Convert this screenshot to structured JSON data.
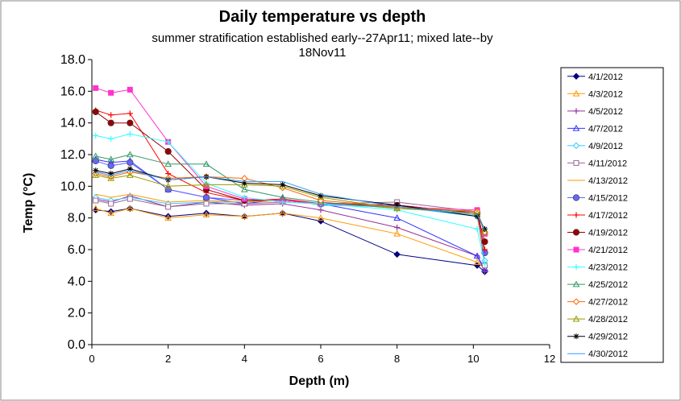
{
  "chart_data": {
    "type": "line",
    "title": "Daily temperature vs depth",
    "subtitle_line1": "summer stratification established early--27Apr11; mixed late--by",
    "subtitle_line2": "18Nov11",
    "xlabel": "Depth (m)",
    "ylabel": "Temp (°C)",
    "xlim": [
      0,
      12
    ],
    "ylim": [
      0,
      18
    ],
    "x_ticks": [
      "0",
      "2",
      "4",
      "6",
      "8",
      "10",
      "12"
    ],
    "y_ticks": [
      "0.0",
      "2.0",
      "4.0",
      "6.0",
      "8.0",
      "10.0",
      "12.0",
      "14.0",
      "16.0",
      "18.0"
    ],
    "grid": false,
    "legend_position": "right",
    "series": [
      {
        "name": "4/1/2012",
        "color": "#000080",
        "marker": "diamond",
        "x": [
          0.1,
          0.5,
          1,
          2,
          3,
          4,
          5,
          6,
          8,
          10.1,
          10.3
        ],
        "y": [
          8.5,
          8.4,
          8.6,
          8.1,
          8.3,
          8.1,
          8.3,
          7.8,
          5.7,
          5.0,
          4.6
        ]
      },
      {
        "name": "4/3/2012",
        "color": "#FF9900",
        "marker": "triangle-open",
        "x": [
          0.1,
          0.5,
          1,
          2,
          3,
          4,
          5,
          6,
          8,
          10.1,
          10.3
        ],
        "y": [
          8.6,
          8.3,
          8.6,
          8.0,
          8.2,
          8.1,
          8.3,
          8.0,
          7.0,
          5.2,
          4.8
        ]
      },
      {
        "name": "4/5/2012",
        "color": "#993399",
        "marker": "plus",
        "x": [
          0.1,
          0.5,
          1,
          2,
          3,
          4,
          5,
          6,
          8,
          10.1,
          10.3
        ],
        "y": [
          9.2,
          9.0,
          9.4,
          8.7,
          9.0,
          8.8,
          8.9,
          8.5,
          7.4,
          5.6,
          4.6
        ]
      },
      {
        "name": "4/7/2012",
        "color": "#3333FF",
        "marker": "triangle-open",
        "x": [
          0.1,
          0.5,
          1,
          2,
          3,
          4,
          5,
          6,
          8,
          10.1,
          10.3
        ],
        "y": [
          11.7,
          11.5,
          11.6,
          9.8,
          9.3,
          8.9,
          9.2,
          8.9,
          8.0,
          5.6,
          4.8
        ]
      },
      {
        "name": "4/9/2012",
        "color": "#33CCFF",
        "marker": "diamond-open",
        "x": [
          0.1,
          0.5,
          1,
          2,
          3,
          4,
          5,
          6,
          8,
          10.1,
          10.3
        ],
        "y": [
          9.3,
          9.1,
          9.3,
          8.9,
          9.0,
          9.0,
          9.2,
          8.8,
          8.7,
          8.1,
          5.3
        ]
      },
      {
        "name": "4/11/2012",
        "color": "#996699",
        "marker": "square-open",
        "x": [
          0.1,
          0.5,
          1,
          2,
          3,
          4,
          5,
          6,
          8,
          10.1,
          10.3
        ],
        "y": [
          9.1,
          8.9,
          9.2,
          8.7,
          8.9,
          8.9,
          9.0,
          8.9,
          9.0,
          8.4,
          5.0
        ]
      },
      {
        "name": "4/13/2012",
        "color": "#FF9900",
        "marker": "none",
        "x": [
          0.1,
          0.5,
          1,
          2,
          3,
          4,
          5,
          6,
          8,
          10.1,
          10.3
        ],
        "y": [
          9.5,
          9.3,
          9.5,
          9.0,
          9.1,
          9.0,
          9.1,
          8.9,
          8.7,
          8.2,
          5.6
        ]
      },
      {
        "name": "4/15/2012",
        "color": "#6666FF",
        "marker": "circle",
        "x": [
          0.1,
          0.5,
          1,
          2,
          3,
          4,
          5,
          6,
          8,
          10.1,
          10.3
        ],
        "y": [
          11.6,
          11.3,
          11.5,
          9.8,
          9.3,
          9.1,
          9.1,
          8.9,
          8.8,
          8.3,
          5.8
        ]
      },
      {
        "name": "4/17/2012",
        "color": "#FF0000",
        "marker": "plus",
        "x": [
          0.1,
          0.5,
          1,
          2,
          3,
          4,
          5,
          6,
          8,
          10.1,
          10.3
        ],
        "y": [
          14.8,
          14.5,
          14.6,
          10.8,
          9.6,
          9.1,
          9.2,
          8.9,
          8.8,
          8.3,
          6.0
        ]
      },
      {
        "name": "4/19/2012",
        "color": "#990000",
        "marker": "circle",
        "x": [
          0.1,
          0.5,
          1,
          2,
          3,
          4,
          5,
          6,
          8,
          10.1,
          10.3
        ],
        "y": [
          14.7,
          14.0,
          14.0,
          12.2,
          9.8,
          9.1,
          9.1,
          8.9,
          8.8,
          8.3,
          6.5
        ]
      },
      {
        "name": "4/21/2012",
        "color": "#FF33CC",
        "marker": "square",
        "x": [
          0.1,
          0.5,
          1,
          2,
          3,
          4,
          5,
          6,
          8,
          10.1,
          10.3
        ],
        "y": [
          16.2,
          15.9,
          16.1,
          12.8,
          10.0,
          9.2,
          9.1,
          8.9,
          8.7,
          8.5,
          7.0
        ]
      },
      {
        "name": "4/23/2012",
        "color": "#33FFFF",
        "marker": "plus",
        "x": [
          0.1,
          0.5,
          1,
          2,
          3,
          4,
          5,
          6,
          8,
          10.1,
          10.3
        ],
        "y": [
          13.2,
          13.0,
          13.3,
          12.8,
          10.2,
          9.3,
          9.0,
          8.9,
          8.5,
          7.3,
          5.1
        ]
      },
      {
        "name": "4/25/2012",
        "color": "#339966",
        "marker": "triangle-open",
        "x": [
          0.1,
          0.5,
          1,
          2,
          3,
          4,
          5,
          6,
          8,
          10.1,
          10.3
        ],
        "y": [
          11.9,
          11.7,
          12.0,
          11.4,
          11.4,
          9.8,
          9.3,
          9.0,
          8.6,
          8.4,
          7.2
        ]
      },
      {
        "name": "4/27/2012",
        "color": "#FF6600",
        "marker": "diamond-open",
        "x": [
          0.1,
          0.5,
          1,
          2,
          3,
          4,
          5,
          6,
          8,
          10.1,
          10.3
        ],
        "y": [
          10.8,
          10.6,
          10.9,
          10.5,
          10.6,
          10.5,
          9.9,
          9.1,
          8.7,
          8.4,
          7.1
        ]
      },
      {
        "name": "4/28/2012",
        "color": "#999900",
        "marker": "triangle-open",
        "x": [
          0.1,
          0.5,
          1,
          2,
          3,
          4,
          5,
          6,
          8,
          10.1,
          10.3
        ],
        "y": [
          10.7,
          10.5,
          10.7,
          10.0,
          10.1,
          10.1,
          10.0,
          9.3,
          8.6,
          8.3,
          7.1
        ]
      },
      {
        "name": "4/29/2012",
        "color": "#000000",
        "marker": "star",
        "x": [
          0.1,
          0.5,
          1,
          2,
          3,
          4,
          5,
          6,
          8,
          10.1,
          10.3
        ],
        "y": [
          11.0,
          10.8,
          11.1,
          10.4,
          10.6,
          10.2,
          10.1,
          9.4,
          8.8,
          8.1,
          7.3
        ]
      },
      {
        "name": "4/30/2012",
        "color": "#3399FF",
        "marker": "none",
        "x": [
          0.1,
          0.5,
          1,
          2,
          3,
          4,
          5,
          6,
          8,
          10.1,
          10.3
        ],
        "y": [
          10.9,
          10.7,
          11.0,
          10.4,
          10.6,
          10.3,
          10.3,
          9.5,
          8.7,
          8.2,
          7.2
        ]
      }
    ]
  }
}
